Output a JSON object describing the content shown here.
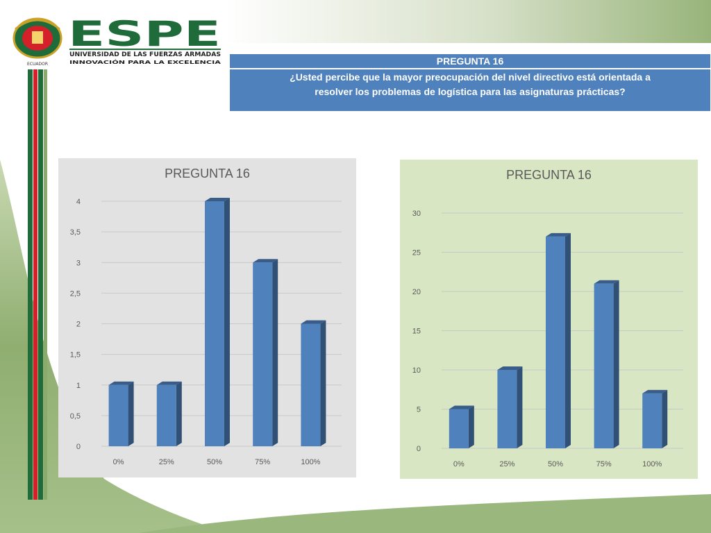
{
  "brand": {
    "name": "ESPE",
    "subtitle": "UNIVERSIDAD DE LAS FUERZAS ARMADAS",
    "tagline": "INNOVACIÓN PARA LA EXCELENCIA",
    "seal_label": "ECUADOR",
    "colors": {
      "green": "#1f6b3a",
      "red": "#d3202a",
      "olive": "#8aab6c"
    }
  },
  "header": {
    "title": "PREGUNTA 16",
    "question_line1": "¿Usted percibe que la mayor preocupación del nivel directivo está orientada a",
    "question_line2": "resolver los problemas de logística para las asignaturas prácticas?",
    "color": "#4f81bd"
  },
  "chart_data": [
    {
      "type": "bar",
      "title": "PREGUNTA 16",
      "categories": [
        "0%",
        "25%",
        "50%",
        "75%",
        "100%"
      ],
      "values": [
        1,
        1,
        4,
        3,
        2
      ],
      "ylim": [
        0,
        4
      ],
      "yticks": [
        "0",
        "0,5",
        "1",
        "1,5",
        "2",
        "2,5",
        "3",
        "3,5",
        "4"
      ],
      "ytick_values": [
        0,
        0.5,
        1,
        1.5,
        2,
        2.5,
        3,
        3.5,
        4
      ],
      "grid": true,
      "bar_color": "#4f81bd",
      "background": "#e2e2e2"
    },
    {
      "type": "bar",
      "title": "PREGUNTA 16",
      "categories": [
        "0%",
        "25%",
        "50%",
        "75%",
        "100%"
      ],
      "values": [
        5,
        10,
        27,
        21,
        7
      ],
      "ylim": [
        0,
        30
      ],
      "yticks": [
        "0",
        "5",
        "10",
        "15",
        "20",
        "25",
        "30"
      ],
      "ytick_values": [
        0,
        5,
        10,
        15,
        20,
        25,
        30
      ],
      "grid": true,
      "bar_color": "#4f81bd",
      "background": "#d9e6c3"
    }
  ]
}
